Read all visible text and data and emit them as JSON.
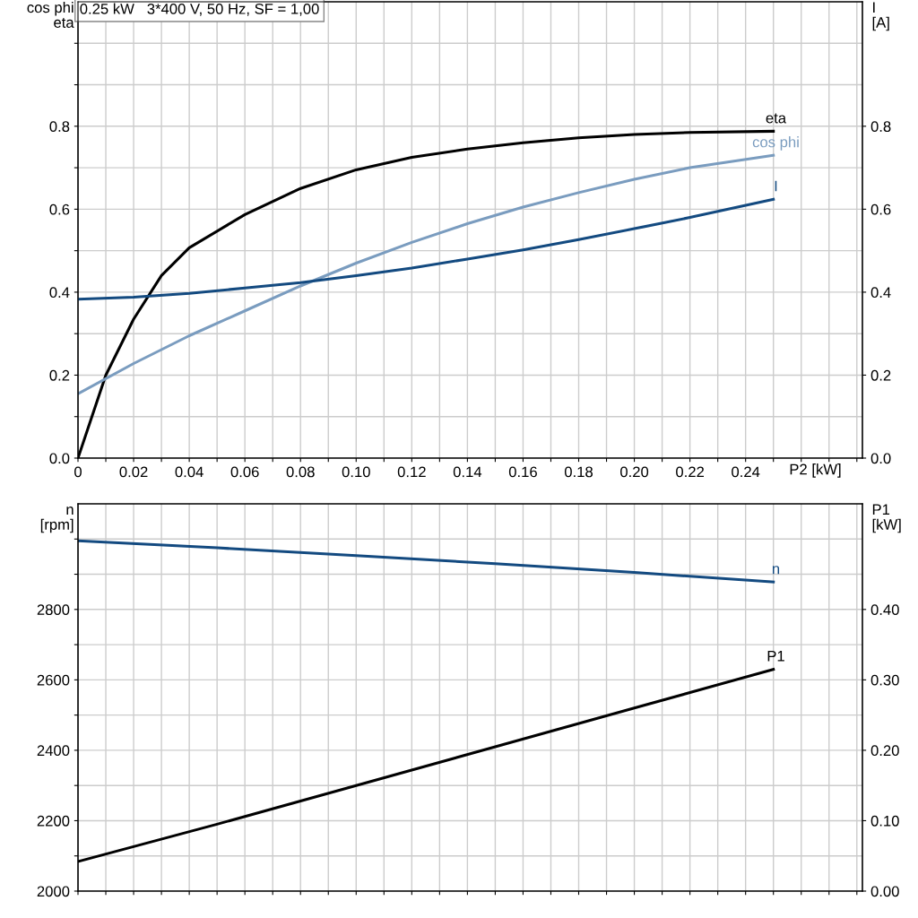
{
  "chart_data": [
    {
      "type": "line",
      "title": "0.25 kW   3*400 V, 50 Hz, SF = 1,00",
      "xlabel": "P2 [kW]",
      "ylabel": "cos phi\neta",
      "y2label": "I\n[A]",
      "grid": true,
      "xlim": [
        0,
        0.282
      ],
      "xticks": [
        {
          "value": 0,
          "label": "0"
        },
        {
          "value": 0.01,
          "label": null
        },
        {
          "value": 0.02,
          "label": "0.02"
        },
        {
          "value": 0.03,
          "label": null
        },
        {
          "value": 0.04,
          "label": "0.04"
        },
        {
          "value": 0.05,
          "label": null
        },
        {
          "value": 0.06,
          "label": "0.06"
        },
        {
          "value": 0.07,
          "label": null
        },
        {
          "value": 0.08,
          "label": "0.08"
        },
        {
          "value": 0.09,
          "label": null
        },
        {
          "value": 0.1,
          "label": "0.10"
        },
        {
          "value": 0.11,
          "label": null
        },
        {
          "value": 0.12,
          "label": "0.12"
        },
        {
          "value": 0.13,
          "label": null
        },
        {
          "value": 0.14,
          "label": "0.14"
        },
        {
          "value": 0.15,
          "label": null
        },
        {
          "value": 0.16,
          "label": "0.16"
        },
        {
          "value": 0.17,
          "label": null
        },
        {
          "value": 0.18,
          "label": "0.18"
        },
        {
          "value": 0.19,
          "label": null
        },
        {
          "value": 0.2,
          "label": "0.20"
        },
        {
          "value": 0.21,
          "label": null
        },
        {
          "value": 0.22,
          "label": "0.22"
        },
        {
          "value": 0.23,
          "label": null
        },
        {
          "value": 0.24,
          "label": "0.24"
        },
        {
          "value": 0.25,
          "label": null
        },
        {
          "value": 0.26,
          "label": null
        },
        {
          "value": 0.27,
          "label": null
        },
        {
          "value": 0.28,
          "label": null
        }
      ],
      "ylim": [
        0,
        1.1
      ],
      "yticks": [
        {
          "value": 0,
          "label": "0.0"
        },
        {
          "value": 0.1,
          "label": null
        },
        {
          "value": 0.2,
          "label": "0.2"
        },
        {
          "value": 0.3,
          "label": null
        },
        {
          "value": 0.4,
          "label": "0.4"
        },
        {
          "value": 0.5,
          "label": null
        },
        {
          "value": 0.6,
          "label": "0.6"
        },
        {
          "value": 0.7,
          "label": null
        },
        {
          "value": 0.8,
          "label": "0.8"
        },
        {
          "value": 0.9,
          "label": null
        },
        {
          "value": 1.0,
          "label": null
        }
      ],
      "y2lim": [
        0,
        1.1
      ],
      "y2ticks": [
        {
          "value": 0,
          "label": "0.0"
        },
        {
          "value": 0.2,
          "label": "0.2"
        },
        {
          "value": 0.4,
          "label": "0.4"
        },
        {
          "value": 0.6,
          "label": "0.6"
        },
        {
          "value": 0.8,
          "label": "0.8"
        }
      ],
      "series": [
        {
          "name": "eta",
          "color": "#000000",
          "x": [
            0,
            0.005,
            0.01,
            0.02,
            0.03,
            0.04,
            0.06,
            0.08,
            0.1,
            0.12,
            0.14,
            0.16,
            0.18,
            0.2,
            0.22,
            0.25
          ],
          "values": [
            0,
            0.1,
            0.2,
            0.335,
            0.44,
            0.507,
            0.587,
            0.65,
            0.695,
            0.725,
            0.745,
            0.76,
            0.772,
            0.78,
            0.785,
            0.788
          ]
        },
        {
          "name": "cos phi",
          "color": "#7a9cbf",
          "x": [
            0,
            0.02,
            0.04,
            0.06,
            0.08,
            0.1,
            0.12,
            0.14,
            0.16,
            0.18,
            0.2,
            0.22,
            0.25
          ],
          "values": [
            0.155,
            0.228,
            0.295,
            0.355,
            0.415,
            0.47,
            0.52,
            0.565,
            0.605,
            0.64,
            0.672,
            0.7,
            0.73
          ]
        },
        {
          "name": "I",
          "color": "#134a80",
          "axis": "y2",
          "x": [
            0,
            0.02,
            0.04,
            0.06,
            0.08,
            0.1,
            0.12,
            0.14,
            0.16,
            0.18,
            0.2,
            0.22,
            0.25
          ],
          "values": [
            0.383,
            0.388,
            0.397,
            0.41,
            0.423,
            0.44,
            0.458,
            0.48,
            0.502,
            0.527,
            0.553,
            0.58,
            0.624
          ]
        }
      ]
    },
    {
      "type": "line",
      "ylabel": "n\n[rpm]",
      "y2label": "P1\n[kW]",
      "grid": true,
      "tick_labels": "y",
      "xlim": [
        0,
        0.282
      ],
      "xticks": [
        {
          "value": 0,
          "label": null
        },
        {
          "value": 0.01,
          "label": null
        },
        {
          "value": 0.02,
          "label": null
        },
        {
          "value": 0.03,
          "label": null
        },
        {
          "value": 0.04,
          "label": null
        },
        {
          "value": 0.05,
          "label": null
        },
        {
          "value": 0.06,
          "label": null
        },
        {
          "value": 0.07,
          "label": null
        },
        {
          "value": 0.08,
          "label": null
        },
        {
          "value": 0.09,
          "label": null
        },
        {
          "value": 0.1,
          "label": null
        },
        {
          "value": 0.11,
          "label": null
        },
        {
          "value": 0.12,
          "label": null
        },
        {
          "value": 0.13,
          "label": null
        },
        {
          "value": 0.14,
          "label": null
        },
        {
          "value": 0.15,
          "label": null
        },
        {
          "value": 0.16,
          "label": null
        },
        {
          "value": 0.17,
          "label": null
        },
        {
          "value": 0.18,
          "label": null
        },
        {
          "value": 0.19,
          "label": null
        },
        {
          "value": 0.2,
          "label": null
        },
        {
          "value": 0.21,
          "label": null
        },
        {
          "value": 0.22,
          "label": null
        },
        {
          "value": 0.23,
          "label": null
        },
        {
          "value": 0.24,
          "label": null
        },
        {
          "value": 0.25,
          "label": null
        },
        {
          "value": 0.26,
          "label": null
        },
        {
          "value": 0.27,
          "label": null
        },
        {
          "value": 0.28,
          "label": null
        }
      ],
      "ylim": [
        2000,
        3100
      ],
      "yticks": [
        2000,
        {
          "value": 2100,
          "label": null
        },
        2200,
        {
          "value": 2300,
          "label": null
        },
        2400,
        {
          "value": 2500,
          "label": null
        },
        2600,
        {
          "value": 2700,
          "label": null
        },
        2800,
        {
          "value": 2900,
          "label": null
        },
        {
          "value": 3000,
          "label": null
        }
      ],
      "y2lim": [
        0,
        0.55
      ],
      "y2ticks": [
        {
          "value": 0,
          "label": "0.00"
        },
        {
          "value": 0.1,
          "label": "0.10"
        },
        {
          "value": 0.2,
          "label": "0.20"
        },
        {
          "value": 0.3,
          "label": "0.30"
        },
        {
          "value": 0.4,
          "label": "0.40"
        }
      ],
      "series": [
        {
          "name": "n",
          "color": "#134a80",
          "x": [
            0,
            0.05,
            0.1,
            0.15,
            0.2,
            0.25
          ],
          "values": [
            2995,
            2975,
            2953,
            2930,
            2905,
            2878
          ]
        },
        {
          "name": "P1",
          "color": "#000000",
          "axis": "y2",
          "x": [
            0,
            0.05,
            0.1,
            0.15,
            0.2,
            0.25
          ],
          "values": [
            0.042,
            0.095,
            0.15,
            0.205,
            0.26,
            0.315
          ]
        }
      ]
    }
  ]
}
